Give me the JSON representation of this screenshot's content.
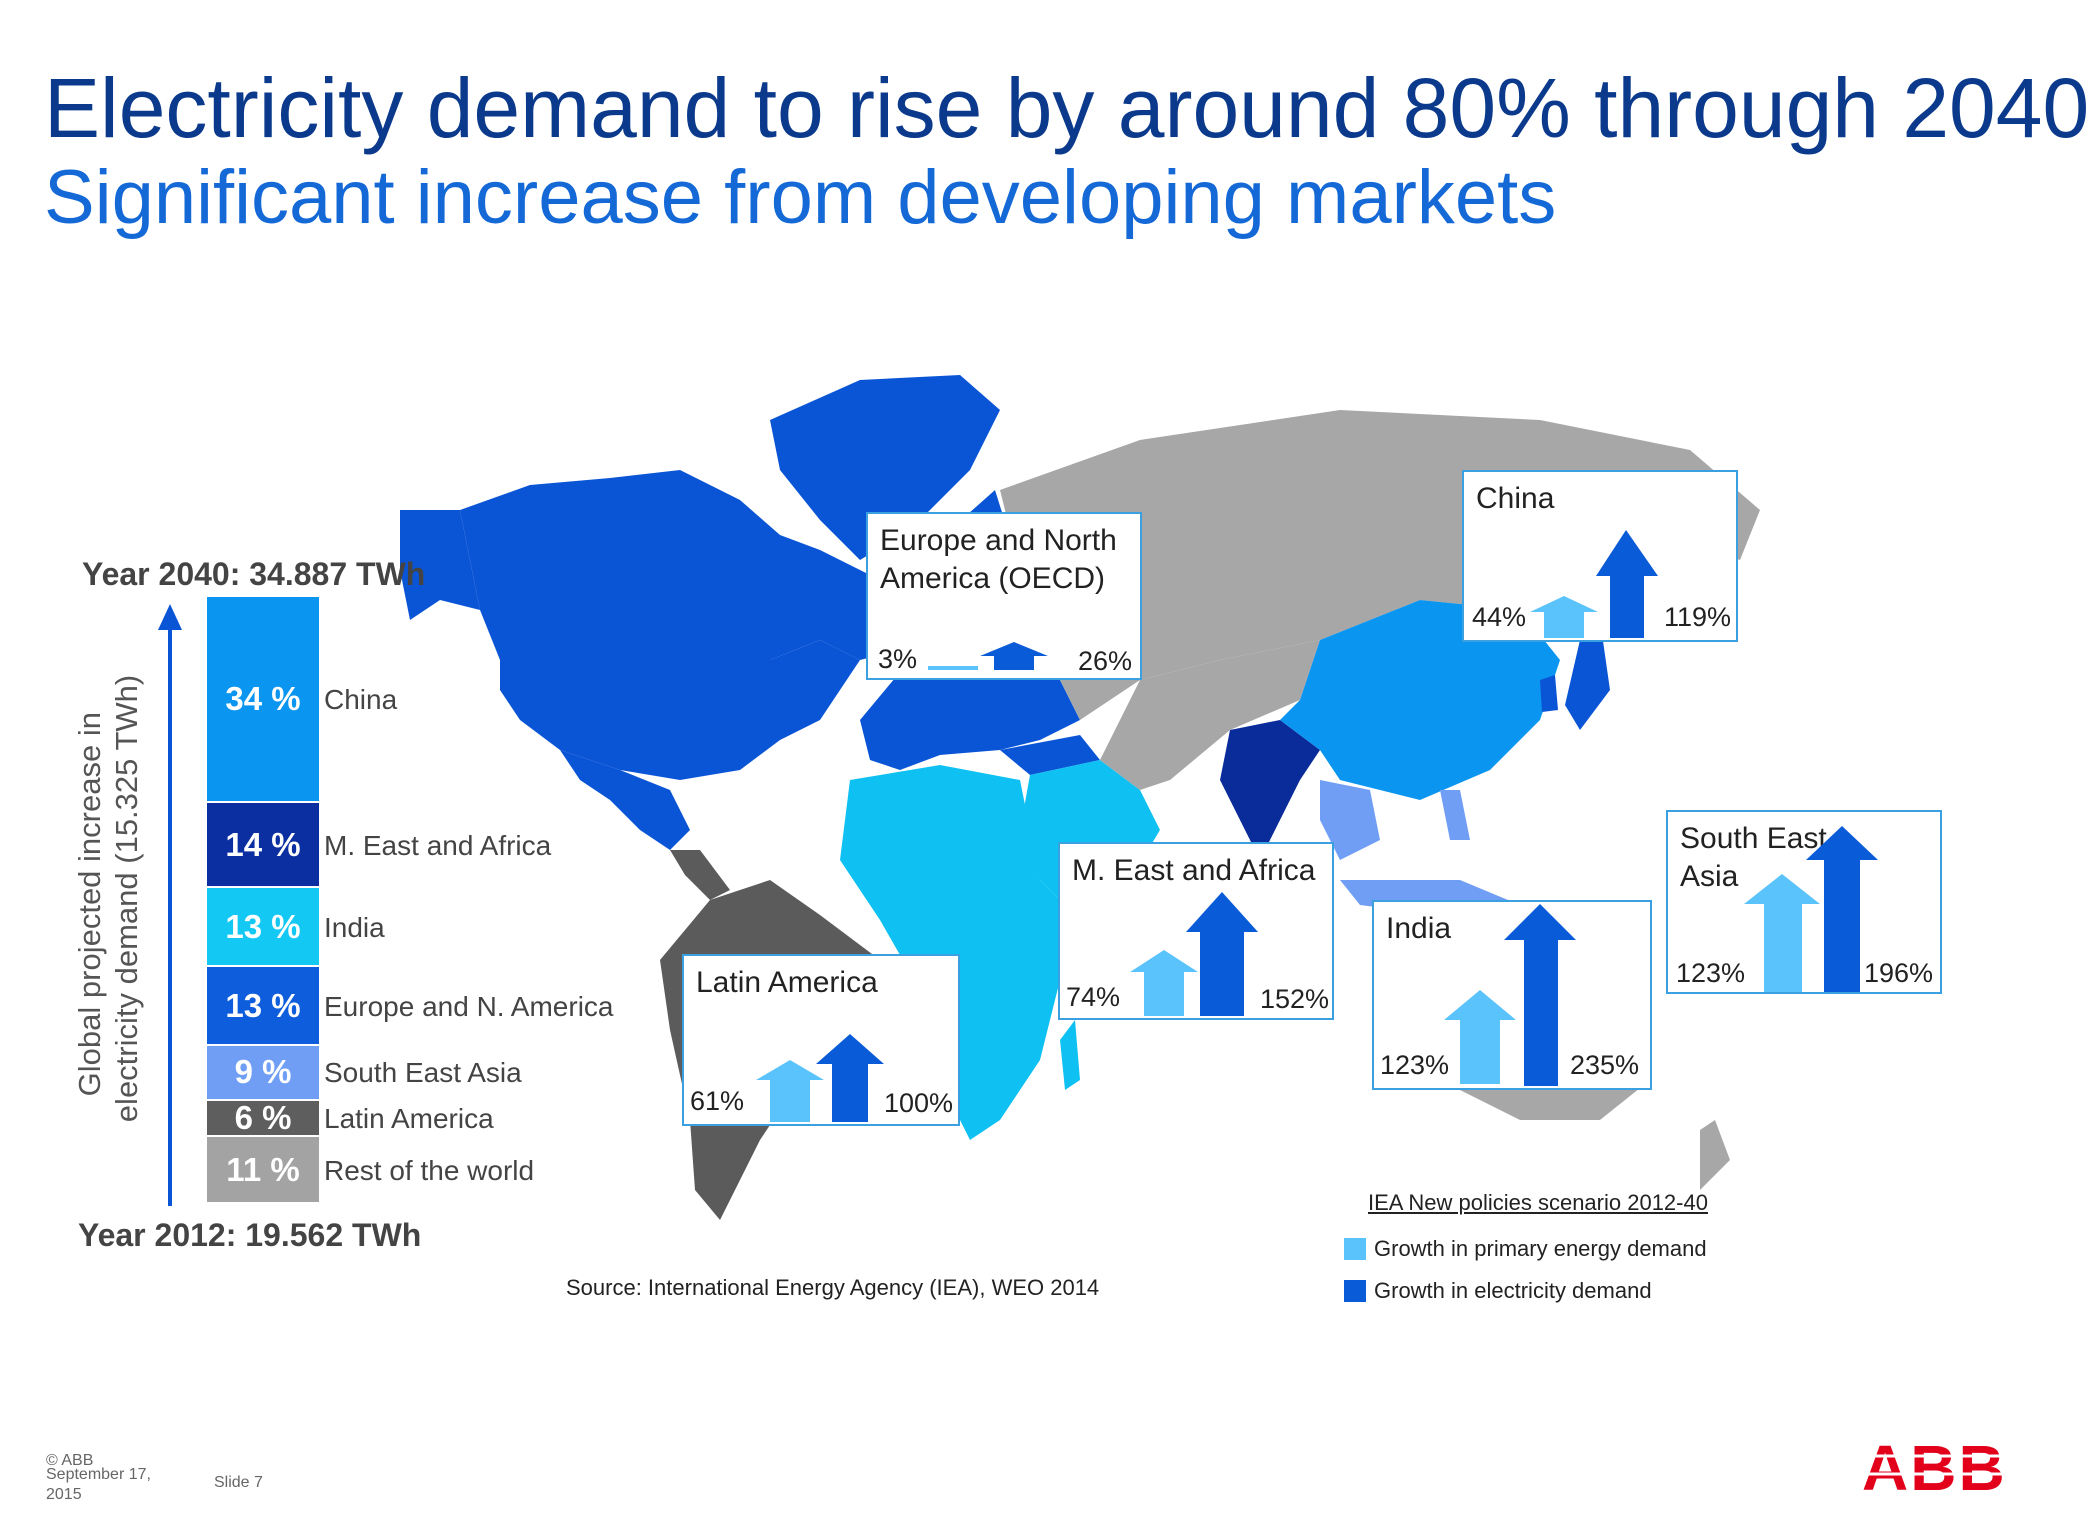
{
  "header": {
    "title": "Electricity demand to rise by around 80% through 2040",
    "subtitle": "Significant increase from developing markets"
  },
  "chart_data": [
    {
      "type": "bar",
      "subtype": "stacked-100",
      "title": "",
      "top_label": "Year 2040: 34.887 TWh",
      "bottom_label": "Year 2012: 19.562 TWh",
      "ylabel_line1": "Global projected increase in",
      "ylabel_line2": "electricity demand (15.325 TWh)",
      "segments": [
        {
          "name": "China",
          "value": 34,
          "label": "34 %",
          "color": "#0a95f0"
        },
        {
          "name": "M. East and Africa",
          "value": 14,
          "label": "14 %",
          "color": "#0b2fa0"
        },
        {
          "name": "India",
          "value": 13,
          "label": "13 %",
          "color": "#14c8f4"
        },
        {
          "name": "Europe and N. America",
          "value": 13,
          "label": "13 %",
          "color": "#0d5ddc"
        },
        {
          "name": "South East Asia",
          "value": 9,
          "label": "9 %",
          "color": "#6f9ef4"
        },
        {
          "name": "Latin America",
          "value": 6,
          "label": "6 %",
          "color": "#5e5e5e"
        },
        {
          "name": "Rest of the world",
          "value": 11,
          "label": "11 %",
          "color": "#a3a3a3"
        }
      ]
    },
    {
      "type": "bar",
      "title": "",
      "legend_title": "IEA New policies scenario 2012-40",
      "series": [
        {
          "name": "Growth in primary energy demand",
          "color": "#5bc3fb"
        },
        {
          "name": "Growth in electricity demand",
          "color": "#0a5bd8"
        }
      ],
      "regions": [
        {
          "name": "Europe and North America (OECD)",
          "primary": 3,
          "electricity": 26,
          "primary_label": "3%",
          "electricity_label": "26%"
        },
        {
          "name": "China",
          "primary": 44,
          "electricity": 119,
          "primary_label": "44%",
          "electricity_label": "119%"
        },
        {
          "name": "M. East and Africa",
          "primary": 74,
          "electricity": 152,
          "primary_label": "74%",
          "electricity_label": "152%"
        },
        {
          "name": "India",
          "primary": 123,
          "electricity": 235,
          "primary_label": "123%",
          "electricity_label": "235%"
        },
        {
          "name": "South East Asia",
          "primary": 123,
          "electricity": 196,
          "primary_label": "123%",
          "electricity_label": "196%"
        },
        {
          "name": "Latin America",
          "primary": 61,
          "electricity": 100,
          "primary_label": "61%",
          "electricity_label": "100%"
        }
      ]
    }
  ],
  "map": {
    "colors": {
      "oecd": "#0a55d6",
      "china": "#0a95f0",
      "india": "#0a2b9a",
      "mideast_africa": "#0fc1f2",
      "se_asia": "#6f9ef4",
      "latin_america": "#5b5b5b",
      "rest": "#a7a7a7"
    }
  },
  "source": "Source: International Energy Agency (IEA), WEO 2014",
  "footer": {
    "copyright": "© ABB",
    "date_line1": "September 17,",
    "date_line2": "2015",
    "slide": "Slide 7",
    "logo_text": "ABB",
    "logo_color": "#e2001a"
  }
}
